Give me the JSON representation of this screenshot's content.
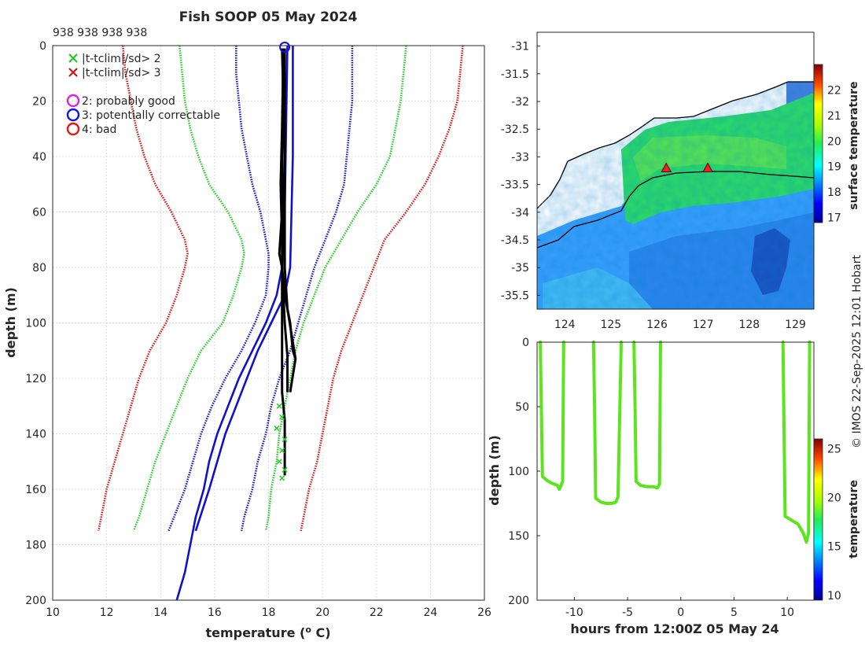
{
  "title": "Fish SOOP 05 May 2024",
  "profile_ids": "938 938 938 938",
  "watermark": "© IMOS 22-Sep-2025 12:01 Hobart",
  "colors": {
    "clim2": "#22cc22",
    "clim3": "#dd1111",
    "std": "#1111cc",
    "probably_good": "#dd22dd",
    "potentially_correctable": "#1111ee",
    "bad": "#ee1111",
    "profile": "#000000",
    "land_line": "#000000"
  },
  "legend": [
    {
      "marker": "x",
      "color": "#22cc22",
      "label": "|t-tclim|/sd> 2"
    },
    {
      "marker": "x",
      "color": "#dd1111",
      "label": "|t-tclim|/sd> 3"
    },
    {
      "marker": "o",
      "color": "#dd22dd",
      "label": "2: probably good"
    },
    {
      "marker": "o",
      "color": "#1111ee",
      "label": "3: potentially correctable"
    },
    {
      "marker": "o",
      "color": "#ee1111",
      "label": "4: bad"
    }
  ],
  "chart_data": [
    {
      "type": "line",
      "name": "temperature-depth profile",
      "xlabel": "temperature (° C)",
      "ylabel": "depth (m)",
      "xlim": [
        10,
        26
      ],
      "ylim": [
        0,
        200
      ],
      "y_reversed": true,
      "xticks": [
        "10",
        "12",
        "14",
        "16",
        "18",
        "20",
        "22",
        "24",
        "26"
      ],
      "yticks": [
        "0",
        "20",
        "40",
        "60",
        "80",
        "100",
        "120",
        "140",
        "160",
        "180",
        "200"
      ],
      "depth": [
        0,
        10,
        20,
        30,
        40,
        50,
        60,
        70,
        75,
        80,
        90,
        100,
        110,
        120,
        130,
        140,
        150,
        160,
        170,
        175
      ],
      "series": [
        {
          "name": "clim_minus_3sd",
          "color": "#dd1111",
          "style": "dotted",
          "values": [
            12.6,
            12.7,
            12.9,
            13.1,
            13.4,
            13.8,
            14.4,
            14.9,
            15.0,
            14.9,
            14.6,
            14.2,
            13.6,
            13.2,
            12.9,
            12.6,
            12.3,
            12.0,
            11.8,
            11.7
          ]
        },
        {
          "name": "clim_minus_2sd",
          "color": "#22cc22",
          "style": "dotted",
          "values": [
            14.7,
            14.8,
            14.9,
            15.1,
            15.4,
            15.8,
            16.5,
            17.0,
            17.1,
            17.0,
            16.7,
            16.3,
            15.5,
            15.0,
            14.6,
            14.2,
            13.8,
            13.5,
            13.2,
            13.0
          ]
        },
        {
          "name": "clim_minus_1sd",
          "color": "#1111cc",
          "style": "dotted",
          "values": [
            16.8,
            16.8,
            16.9,
            17.0,
            17.2,
            17.4,
            17.7,
            17.9,
            18.0,
            18.0,
            17.9,
            17.5,
            17.0,
            16.4,
            15.9,
            15.5,
            15.2,
            14.9,
            14.5,
            14.3
          ]
        },
        {
          "name": "clim_plus_1sd",
          "color": "#1111cc",
          "style": "dotted",
          "values": [
            21.1,
            21.1,
            21.1,
            21.0,
            20.9,
            20.8,
            20.5,
            20.1,
            19.9,
            19.7,
            19.4,
            19.1,
            18.8,
            18.4,
            18.1,
            17.9,
            17.6,
            17.4,
            17.1,
            17.0
          ]
        },
        {
          "name": "clim_plus_2sd",
          "color": "#22cc22",
          "style": "dotted",
          "values": [
            23.1,
            23.0,
            22.9,
            22.7,
            22.5,
            22.0,
            21.3,
            20.7,
            20.4,
            20.1,
            19.7,
            19.3,
            19.0,
            18.8,
            18.6,
            18.4,
            18.3,
            18.1,
            18.0,
            17.9
          ]
        },
        {
          "name": "clim_plus_3sd",
          "color": "#dd1111",
          "style": "dotted",
          "values": [
            25.2,
            25.1,
            25.0,
            24.7,
            24.3,
            23.8,
            23.1,
            22.3,
            22.1,
            21.9,
            21.5,
            21.1,
            20.7,
            20.4,
            20.2,
            20.0,
            19.8,
            19.5,
            19.3,
            19.2
          ]
        },
        {
          "name": "clim_mean_minus",
          "color": "#1111cc",
          "style": "solid",
          "depth": [
            0,
            60,
            80,
            90,
            100,
            110,
            120,
            130,
            140,
            150,
            160,
            170,
            180,
            190,
            200
          ],
          "values": [
            18.7,
            18.6,
            18.5,
            18.3,
            17.9,
            17.4,
            16.9,
            16.5,
            16.1,
            15.8,
            15.6,
            15.3,
            15.1,
            14.9,
            14.6
          ]
        },
        {
          "name": "clim_mean_plus",
          "color": "#1111cc",
          "style": "solid",
          "depth": [
            0,
            40,
            80,
            90,
            100,
            110,
            120,
            130,
            140,
            150,
            160,
            175
          ],
          "values": [
            18.9,
            18.9,
            18.8,
            18.6,
            18.1,
            17.6,
            17.2,
            16.8,
            16.4,
            16.1,
            15.8,
            15.3
          ]
        },
        {
          "name": "profile_1",
          "color": "#000000",
          "style": "solid",
          "depth": [
            1,
            20,
            40,
            60,
            75,
            80,
            90,
            100,
            110,
            113,
            125
          ],
          "values": [
            18.5,
            18.55,
            18.5,
            18.5,
            18.4,
            18.5,
            18.6,
            18.8,
            18.9,
            19.0,
            18.8
          ]
        },
        {
          "name": "profile_2",
          "color": "#000000",
          "style": "solid",
          "depth": [
            1,
            20,
            40,
            60,
            80,
            90,
            100,
            112,
            125
          ],
          "values": [
            18.6,
            18.6,
            18.6,
            18.55,
            18.5,
            18.55,
            18.6,
            18.7,
            18.7
          ]
        },
        {
          "name": "profile_3",
          "color": "#000000",
          "style": "solid",
          "depth": [
            1,
            30,
            50,
            70,
            85,
            95,
            105,
            115,
            125,
            135,
            150,
            155
          ],
          "values": [
            18.55,
            18.5,
            18.45,
            18.5,
            18.5,
            18.5,
            18.5,
            18.5,
            18.5,
            18.6,
            18.6,
            18.6
          ]
        },
        {
          "name": "profile_4",
          "color": "#000000",
          "style": "solid",
          "depth": [
            1,
            30,
            60,
            80,
            95,
            110,
            113
          ],
          "values": [
            18.6,
            18.6,
            18.6,
            18.6,
            18.7,
            18.95,
            19.0
          ]
        }
      ],
      "flags_green_x": {
        "temperature": [
          18.4,
          18.5,
          18.3,
          18.6,
          18.5,
          18.4,
          18.6,
          18.5
        ],
        "depth": [
          130,
          134,
          138,
          142,
          146,
          150,
          153,
          156
        ]
      },
      "flag_circle_potentially_correctable": {
        "temperature": 18.6,
        "depth": 0
      }
    },
    {
      "type": "heatmap",
      "name": "surface temperature map",
      "xticks": [
        "124",
        "125",
        "126",
        "127",
        "128",
        "129"
      ],
      "yticks": [
        "-31",
        "-31.5",
        "-32",
        "-32.5",
        "-33",
        "-33.5",
        "-34",
        "-34.5",
        "-35",
        "-35.5"
      ],
      "xlim": [
        123.4,
        129.4
      ],
      "ylim": [
        -35.75,
        -30.75
      ],
      "colorbar_label": "surface temperature",
      "colorbar_ticks": [
        "17",
        "18",
        "19",
        "20",
        "21",
        "22"
      ],
      "colorbar_range": [
        16.8,
        23
      ],
      "track_markers": [
        {
          "lon": 126.2,
          "lat": -33.2
        },
        {
          "lon": 127.1,
          "lat": -33.2
        }
      ]
    },
    {
      "type": "line",
      "name": "depth vs time",
      "xlabel": "hours from 12:00Z 05 May 24",
      "ylabel": "depth (m)",
      "xlim": [
        -13.5,
        12.5
      ],
      "ylim": [
        0,
        200
      ],
      "y_reversed": true,
      "xticks": [
        "-10",
        "-5",
        "0",
        "5",
        "10"
      ],
      "yticks": [
        "0",
        "50",
        "100",
        "150",
        "200"
      ],
      "colorbar_label": "temperature",
      "colorbar_ticks": [
        "10",
        "15",
        "20",
        "25"
      ],
      "colorbar_range": [
        9.5,
        26
      ],
      "series": [
        {
          "name": "drop_1",
          "hours": [
            -13.2,
            -13.1,
            -13.0,
            -12.6,
            -12.2,
            -11.6,
            -11.4,
            -11.3,
            -11.1,
            -11.0
          ],
          "depth": [
            0,
            50,
            104,
            107,
            109,
            111,
            114,
            112,
            108,
            0
          ]
        },
        {
          "name": "drop_2",
          "hours": [
            -8.2,
            -8.1,
            -8.0,
            -7.5,
            -7.0,
            -6.5,
            -6.1,
            -5.9,
            -5.6
          ],
          "depth": [
            0,
            50,
            121,
            124,
            125,
            125,
            124,
            120,
            0
          ]
        },
        {
          "name": "drop_3",
          "hours": [
            -4.4,
            -4.3,
            -4.2,
            -3.8,
            -3.2,
            -2.6,
            -2.2,
            -2.0,
            -1.9
          ],
          "depth": [
            0,
            50,
            108,
            111,
            112,
            112,
            113,
            110,
            0
          ]
        },
        {
          "name": "drop_4",
          "hours": [
            9.6,
            9.7,
            9.8,
            10.4,
            11.0,
            11.5,
            11.8,
            12.0,
            12.1
          ],
          "depth": [
            0,
            70,
            135,
            138,
            141,
            148,
            155,
            148,
            0
          ]
        }
      ]
    }
  ]
}
